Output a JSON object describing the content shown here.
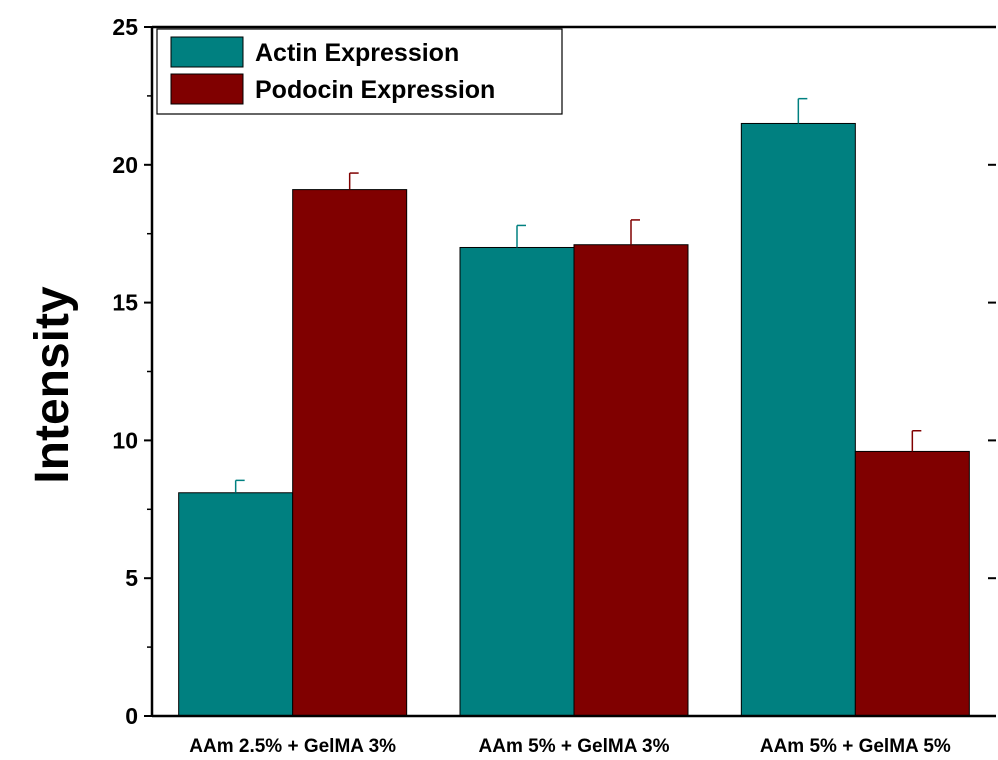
{
  "chart_data": {
    "type": "bar",
    "title": "",
    "xlabel": "",
    "ylabel": "Intensity",
    "ylim": [
      0,
      25
    ],
    "yticks": [
      0,
      5,
      10,
      15,
      20,
      25
    ],
    "categories": [
      "AAm 2.5% + GelMA 3%",
      "AAm 5% + GelMA 3%",
      "AAm 5% + GelMA 5%"
    ],
    "series": [
      {
        "name": "Actin Expression",
        "color": "#008080",
        "values": [
          8.1,
          17.0,
          21.5
        ],
        "errors": [
          0.45,
          0.8,
          0.9
        ]
      },
      {
        "name": "Podocin Expression",
        "color": "#800000",
        "values": [
          19.1,
          17.1,
          9.6
        ],
        "errors": [
          0.6,
          0.9,
          0.75
        ]
      }
    ],
    "grid": false,
    "legend": "top-left"
  }
}
